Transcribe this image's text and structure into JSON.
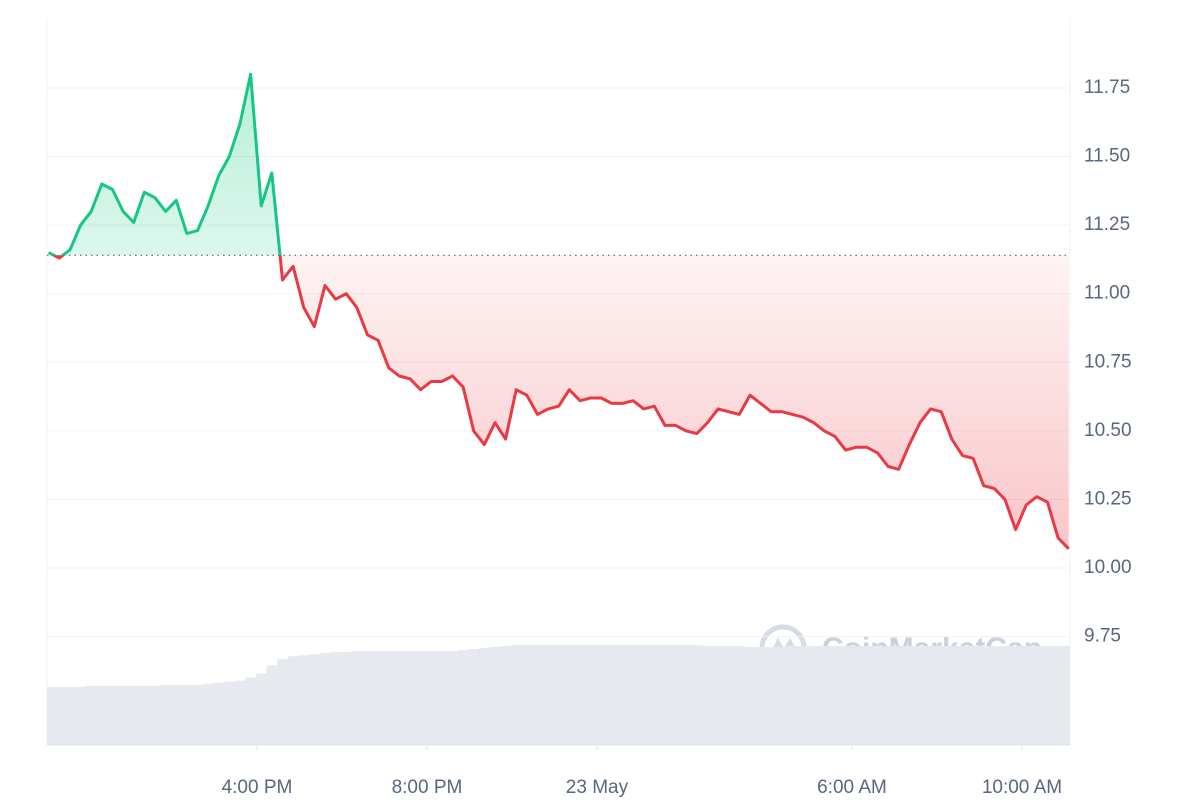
{
  "chart_data": {
    "type": "price-line",
    "x": [
      11.1,
      11.35,
      11.6,
      11.85,
      12.1,
      12.35,
      12.6,
      12.85,
      13.1,
      13.35,
      13.6,
      13.85,
      14.1,
      14.35,
      14.6,
      14.85,
      15.1,
      15.35,
      15.6,
      15.85,
      16.1,
      16.35,
      16.6,
      16.85,
      17.1,
      17.35,
      17.6,
      17.85,
      18.1,
      18.35,
      18.6,
      18.85,
      19.1,
      19.35,
      19.6,
      19.85,
      20.1,
      20.35,
      20.6,
      20.85,
      21.1,
      21.35,
      21.6,
      21.85,
      22.1,
      22.35,
      22.6,
      22.85,
      23.1,
      23.35,
      23.6,
      23.85,
      24.1,
      24.35,
      24.6,
      24.85,
      25.1,
      25.35,
      25.6,
      25.85,
      26.1,
      26.35,
      26.6,
      26.85,
      27.1,
      27.35,
      27.6,
      27.85,
      28.1,
      28.35,
      28.6,
      28.85,
      29.1,
      29.35,
      29.6,
      29.85,
      30.1,
      30.35,
      30.6,
      30.85,
      31.1,
      31.35,
      31.6,
      31.85,
      32.1,
      32.35,
      32.6,
      32.85,
      33.1,
      33.35,
      33.6,
      33.85,
      34.1,
      34.35,
      34.6,
      34.85,
      35.1
    ],
    "series": [
      {
        "values": [
          11.15,
          11.13,
          11.16,
          11.25,
          11.3,
          11.4,
          11.38,
          11.3,
          11.26,
          11.37,
          11.35,
          11.3,
          11.34,
          11.22,
          11.23,
          11.32,
          11.43,
          11.5,
          11.62,
          11.8,
          11.32,
          11.44,
          11.05,
          11.1,
          10.95,
          10.88,
          11.03,
          10.98,
          11.0,
          10.95,
          10.85,
          10.83,
          10.73,
          10.7,
          10.69,
          10.65,
          10.68,
          10.68,
          10.7,
          10.66,
          10.5,
          10.45,
          10.53,
          10.47,
          10.65,
          10.63,
          10.56,
          10.58,
          10.59,
          10.65,
          10.61,
          10.62,
          10.62,
          10.6,
          10.6,
          10.61,
          10.58,
          10.59,
          10.52,
          10.52,
          10.5,
          10.49,
          10.53,
          10.58,
          10.57,
          10.56,
          10.63,
          10.6,
          10.57,
          10.57,
          10.56,
          10.55,
          10.53,
          10.5,
          10.48,
          10.43,
          10.44,
          10.44,
          10.42,
          10.37,
          10.36,
          10.45,
          10.53,
          10.58,
          10.57,
          10.47,
          10.41,
          10.4,
          10.3,
          10.29,
          10.25,
          10.14,
          10.23,
          10.26,
          10.24,
          10.11,
          10.07
        ]
      }
    ],
    "volume": [
      57,
      57,
      57,
      57,
      58,
      58,
      58,
      58,
      58,
      58,
      58,
      59,
      59,
      59,
      59,
      60,
      61,
      62,
      63,
      66,
      70,
      78,
      84,
      87,
      88,
      89,
      90,
      91,
      91,
      92,
      92,
      92,
      92,
      92,
      92,
      92,
      92,
      92,
      92,
      93,
      94,
      95,
      96,
      97,
      98,
      98,
      98,
      98,
      98,
      98,
      98,
      98,
      98,
      98,
      98,
      98,
      98,
      98,
      98,
      98,
      98,
      98,
      97,
      97,
      97,
      97,
      96,
      96,
      96,
      96,
      97,
      97,
      97,
      97,
      97,
      97,
      97,
      97,
      97,
      97,
      97,
      97,
      97,
      97,
      97,
      97,
      97,
      97,
      97,
      97,
      97,
      97,
      97,
      97,
      97,
      97,
      97
    ],
    "baseline": 11.14,
    "up_color": "#16c784",
    "down_color": "#ea3943",
    "volume_color": "#e6e9ee",
    "xlim": [
      11.06,
      35.13
    ],
    "xticks": [
      {
        "value": 16,
        "label": "4:00 PM"
      },
      {
        "value": 20,
        "label": "8:00 PM"
      },
      {
        "value": 24,
        "label": "23 May"
      },
      {
        "value": 30,
        "label": "6:00 AM"
      },
      {
        "value": 34,
        "label": "10:00 AM"
      }
    ],
    "ylim": [
      9.355,
      12.005
    ],
    "yticks": [
      9.75,
      {
        "value": 10,
        "label": "10.00"
      },
      10.25,
      {
        "value": 10.5,
        "label": "10.50"
      },
      10.75,
      {
        "value": 11,
        "label": "11.00"
      },
      11.25,
      {
        "value": 11.5,
        "label": "11.50"
      },
      11.75
    ],
    "grid": true,
    "watermark": "CoinMarketCap"
  }
}
